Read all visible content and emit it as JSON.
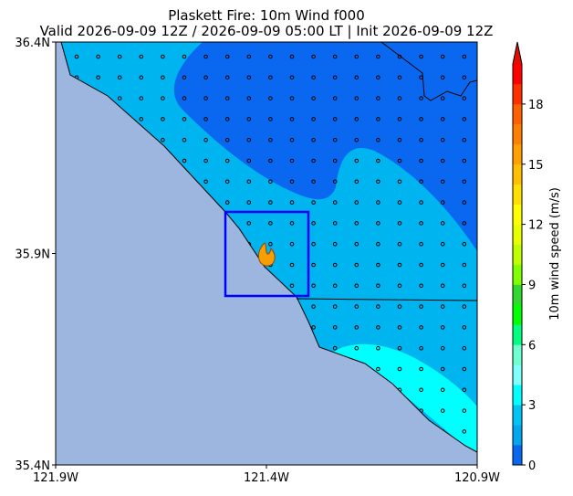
{
  "chart_data": {
    "type": "map",
    "title": [
      "Plaskett Fire: 10m Wind f000",
      "Valid 2026-09-09 12Z / 2026-09-09 05:00 LT | Init 2026-09-09 12Z"
    ],
    "xlim": [
      -121.9,
      -120.9
    ],
    "xticks": [
      {
        "value": -121.9,
        "label": "121.9W"
      },
      {
        "value": -121.4,
        "label": "121.4W"
      },
      {
        "value": -120.9,
        "label": "120.9W"
      }
    ],
    "ylim": [
      35.4,
      36.4
    ],
    "yticks": [
      {
        "value": 35.4,
        "label": "35.4N"
      },
      {
        "value": 35.9,
        "label": "35.9N"
      },
      {
        "value": 36.4,
        "label": "36.4N"
      }
    ],
    "colorbar": {
      "label": "10m wind speed (m/s)",
      "levels": [
        0,
        1,
        2,
        3,
        4,
        5,
        6,
        7,
        8,
        9,
        10,
        11,
        12,
        13,
        14,
        15,
        16,
        17,
        18,
        19,
        20
      ],
      "colors": [
        "#0a68f0",
        "#00a8f0",
        "#00c4f4",
        "#00ffff",
        "#80ffff",
        "#70ffd0",
        "#00ff80",
        "#00ff00",
        "#30d830",
        "#80ff00",
        "#c0ff00",
        "#e8ff00",
        "#ffff00",
        "#ffe000",
        "#ffc000",
        "#ffa000",
        "#ff8000",
        "#ff6000",
        "#ff3000",
        "#ff0000"
      ],
      "extend_color": "#e01000",
      "ticks": [
        0,
        3,
        6,
        9,
        12,
        15,
        18
      ]
    }
  }
}
